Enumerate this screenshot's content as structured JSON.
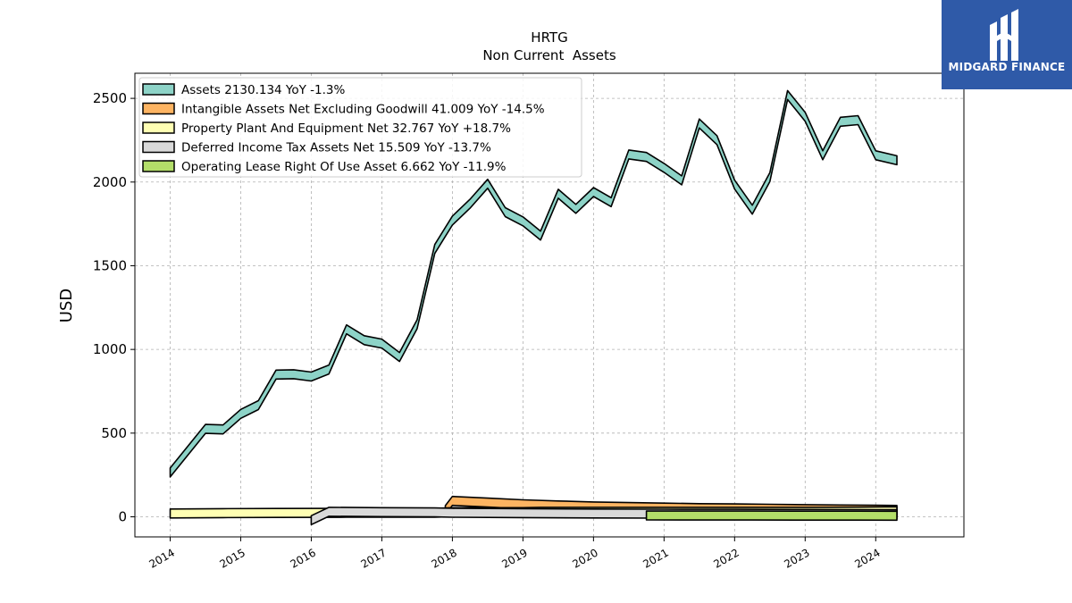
{
  "brand": {
    "name": "MIDGARD FINANCE",
    "bg_color": "#2f5aa8",
    "icon": "midgard-logo-icon"
  },
  "chart_data": {
    "type": "area",
    "title": "HRTG",
    "subtitle": "Non Current  Assets",
    "xlabel": "",
    "ylabel": "USD",
    "xlim": [
      2013.5,
      2025.25
    ],
    "ylim": [
      -120,
      2650
    ],
    "yticks": [
      0,
      500,
      1000,
      1500,
      2000,
      2500
    ],
    "xticks": [
      2014,
      2015,
      2016,
      2017,
      2018,
      2019,
      2020,
      2021,
      2022,
      2023,
      2024
    ],
    "grid": true,
    "legend_position": "top-left",
    "series": [
      {
        "name": "Assets",
        "legend_label": "Assets  2130.134 YoY -1.3%",
        "color": "#8dd3c7",
        "x": [
          2014.0,
          2014.5,
          2014.75,
          2015.0,
          2015.25,
          2015.5,
          2015.75,
          2016.0,
          2016.25,
          2016.5,
          2016.75,
          2017.0,
          2017.25,
          2017.5,
          2017.75,
          2018.0,
          2018.25,
          2018.5,
          2018.75,
          2019.0,
          2019.25,
          2019.5,
          2019.75,
          2020.0,
          2020.25,
          2020.5,
          2020.75,
          2021.0,
          2021.25,
          2021.5,
          2021.75,
          2022.0,
          2022.25,
          2022.5,
          2022.75,
          2023.0,
          2023.25,
          2023.5,
          2023.75,
          2024.0,
          2024.3
        ],
        "values": [
          265,
          525,
          522,
          615,
          667,
          850,
          852,
          838,
          880,
          1120,
          1055,
          1035,
          955,
          1150,
          1600,
          1770,
          1870,
          1990,
          1820,
          1765,
          1680,
          1930,
          1840,
          1940,
          1880,
          2165,
          2150,
          2085,
          2010,
          2350,
          2250,
          1985,
          1835,
          2030,
          2520,
          2390,
          2160,
          2360,
          2370,
          2160,
          2130
        ]
      },
      {
        "name": "Intangible Assets Net Excluding Goodwill",
        "legend_label": "Intangible Assets Net Excluding Goodwill  41.009 YoY -14.5%",
        "color": "#fdb462",
        "x": [
          2017.9,
          2018.0,
          2018.5,
          2019.0,
          2019.5,
          2020.0,
          2020.5,
          2021.0,
          2021.5,
          2022.0,
          2022.5,
          2023.0,
          2023.5,
          2024.0,
          2024.3
        ],
        "values": [
          40,
          95,
          85,
          75,
          68,
          62,
          58,
          55,
          52,
          50,
          48,
          46,
          44,
          42,
          41
        ]
      },
      {
        "name": "Property Plant And Equipment Net",
        "legend_label": "Property Plant And Equipment Net  32.767 YoY +18.7%",
        "color": "#ffffb3",
        "x": [
          2014.0,
          2014.75,
          2015.5,
          2016.5,
          2017.75,
          2018.0,
          2019.0,
          2019.25,
          2020.0,
          2020.75,
          2021.5,
          2022.25,
          2023.0,
          2023.75,
          2024.3
        ],
        "values": [
          20,
          22,
          23,
          24,
          24,
          28,
          28,
          30,
          30,
          30,
          30,
          30,
          30,
          31,
          33
        ]
      },
      {
        "name": "Deferred Income Tax Assets Net",
        "legend_label": "Deferred Income Tax Assets Net  15.509 YoY -13.7%",
        "color": "#d9d9d9",
        "x": [
          2016.0,
          2016.25,
          2017.0,
          2017.75,
          2018.0,
          2019.0,
          2020.0,
          2021.0,
          2022.0,
          2023.0,
          2024.0,
          2024.3
        ],
        "values": [
          -20,
          30,
          28,
          26,
          24,
          22,
          20,
          19,
          18,
          17,
          16,
          15.5
        ]
      },
      {
        "name": "Operating Lease Right Of Use Asset",
        "legend_label": "Operating Lease Right Of Use Asset  6.662 YoY -11.9%",
        "color": "#b3de69",
        "x": [
          2020.75,
          2021.5,
          2022.25,
          2023.0,
          2023.75,
          2024.3
        ],
        "values": [
          8,
          7.5,
          7.5,
          7,
          7,
          6.7
        ]
      }
    ]
  }
}
